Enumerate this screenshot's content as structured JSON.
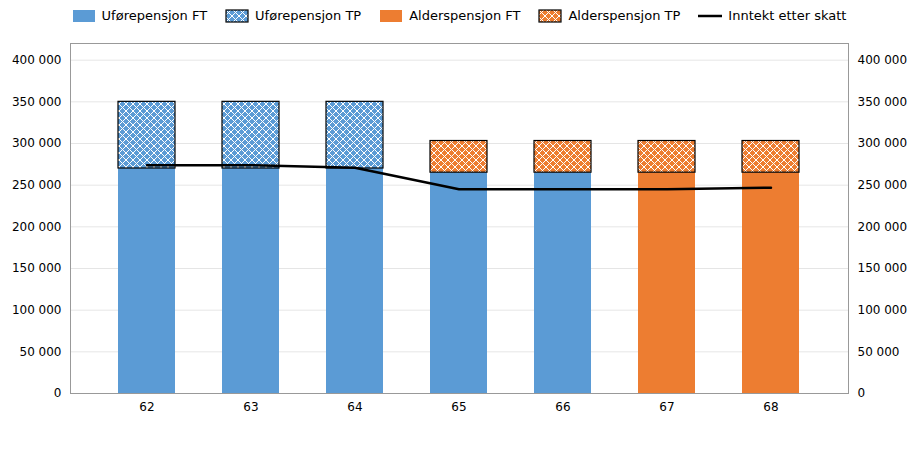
{
  "chart_data": {
    "type": "bar",
    "stacked": true,
    "categories": [
      62,
      63,
      64,
      65,
      66,
      67,
      68
    ],
    "series": [
      {
        "name": "Uførepensjon FT",
        "color": "#5B9BD5",
        "values": [
          270000,
          270000,
          270000,
          265000,
          265000,
          0,
          0
        ]
      },
      {
        "name": "Uførepensjon TP",
        "color": "#5B9BD5",
        "values": [
          80000,
          80000,
          80000,
          0,
          0,
          0,
          0
        ]
      },
      {
        "name": "Alderspensjon FT",
        "color": "#ED7D31",
        "values": [
          0,
          0,
          0,
          0,
          0,
          265000,
          265000
        ]
      },
      {
        "name": "Alderspensjon TP",
        "color": "#ED7D31",
        "values": [
          0,
          0,
          0,
          38000,
          38000,
          38000,
          38000
        ]
      },
      {
        "name": "Inntekt etter skatt",
        "type": "line",
        "axis": "y2",
        "color": "#000000",
        "values": [
          274000,
          274000,
          271000,
          245000,
          245000,
          245000,
          247000
        ]
      }
    ],
    "ylim": [
      0,
      420000
    ],
    "yticks": [
      0,
      {
        "value": 50000,
        "label": "50 000"
      },
      {
        "value": 100000,
        "label": "100 000"
      },
      {
        "value": 150000,
        "label": "150 000"
      },
      {
        "value": 200000,
        "label": "200 000"
      },
      {
        "value": 250000,
        "label": "250 000"
      },
      {
        "value": 300000,
        "label": "300 000"
      },
      {
        "value": 350000,
        "label": "350 000"
      },
      {
        "value": 400000,
        "label": "400 000"
      }
    ],
    "y2lim": [
      0,
      420000
    ],
    "y2ticks": [
      0,
      {
        "value": 50000,
        "label": "50 000"
      },
      {
        "value": 100000,
        "label": "100 000"
      },
      {
        "value": 150000,
        "label": "150 000"
      },
      {
        "value": 200000,
        "label": "200 000"
      },
      {
        "value": 250000,
        "label": "250 000"
      },
      {
        "value": 300000,
        "label": "300 000"
      },
      {
        "value": 350000,
        "label": "350 000"
      },
      {
        "value": 400000,
        "label": "400 000"
      }
    ],
    "grid": true,
    "legend": "top"
  }
}
